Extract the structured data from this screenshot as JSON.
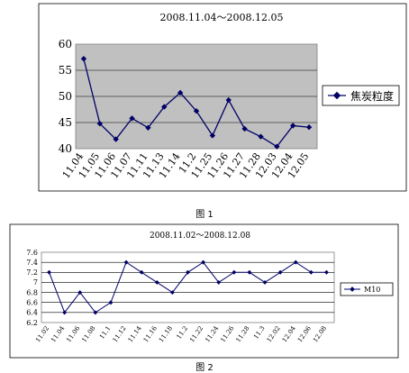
{
  "chart_data": [
    {
      "type": "line",
      "title": "2008.11.04～2008.12.05",
      "categories": [
        "11.04",
        "11.05",
        "11.06",
        "11.07",
        "11.11",
        "11.13",
        "11.14",
        "11.2",
        "11.25",
        "11.26",
        "11.27",
        "11.28",
        "12.03",
        "12.04",
        "12.05"
      ],
      "series": [
        {
          "name": "焦炭粒度",
          "values": [
            57.2,
            44.8,
            41.8,
            45.8,
            44.0,
            48.0,
            50.7,
            47.2,
            42.5,
            49.3,
            43.8,
            42.3,
            40.4,
            44.4,
            44.1
          ]
        }
      ],
      "yticks": [
        "40",
        "45",
        "50",
        "55",
        "60"
      ],
      "ylim": [
        40,
        60
      ],
      "grid": true,
      "legend": "right",
      "caption": "图 1"
    },
    {
      "type": "line",
      "title": "2008.11.02～2008.12.08",
      "categories": [
        "11.02",
        "11.04",
        "11.06",
        "11.08",
        "11.1",
        "11.12",
        "11.14",
        "11.16",
        "11.18",
        "11.2",
        "11.22",
        "11.24",
        "11.26",
        "11.28",
        "11.3",
        "12.02",
        "12.04",
        "12.06",
        "12.08"
      ],
      "series": [
        {
          "name": "M10",
          "values": [
            7.2,
            6.4,
            6.8,
            6.4,
            6.6,
            7.4,
            7.2,
            7.0,
            6.8,
            7.2,
            7.4,
            7.0,
            7.2,
            7.2,
            7.0,
            7.2,
            7.4,
            7.2,
            7.2
          ]
        }
      ],
      "yticks": [
        "6.2",
        "6.4",
        "6.6",
        "6.8",
        "7",
        "7.2",
        "7.4",
        "7.6"
      ],
      "ylim": [
        6.2,
        7.6
      ],
      "grid": true,
      "legend": "right",
      "caption": "图 2"
    }
  ]
}
